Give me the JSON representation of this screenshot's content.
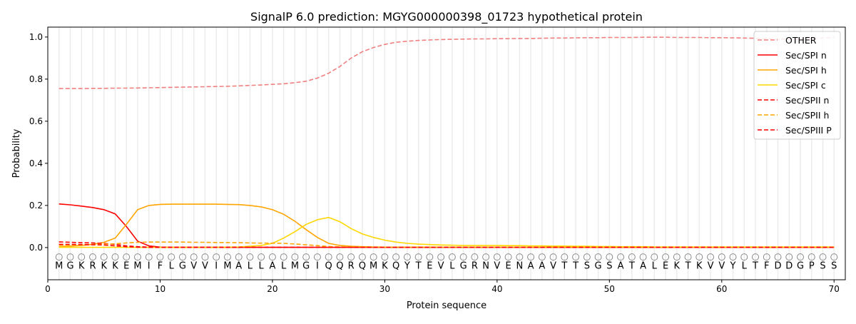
{
  "chart_data": {
    "type": "line",
    "title": "SignalP 6.0 prediction: MGYG000000398_01723 hypothetical protein",
    "xlabel": "Protein sequence",
    "ylabel": "Probability",
    "xlim": [
      0,
      71
    ],
    "ylim": [
      -0.153,
      1.047
    ],
    "xticks": [
      0,
      10,
      20,
      30,
      40,
      50,
      60,
      70
    ],
    "yticks": [
      "0.0",
      "0.2",
      "0.4",
      "0.6",
      "0.8",
      "1.0"
    ],
    "ytick_values": [
      0,
      0.2,
      0.4,
      0.6,
      0.8,
      1.0
    ],
    "legend_position": "top-right",
    "sequence": [
      "M",
      "G",
      "K",
      "R",
      "K",
      "K",
      "E",
      "M",
      "I",
      "F",
      "L",
      "G",
      "V",
      "V",
      "I",
      "M",
      "A",
      "L",
      "L",
      "A",
      "L",
      "M",
      "G",
      "I",
      "Q",
      "Q",
      "R",
      "Q",
      "M",
      "K",
      "Q",
      "Y",
      "T",
      "E",
      "V",
      "L",
      "G",
      "R",
      "N",
      "V",
      "E",
      "N",
      "A",
      "A",
      "V",
      "T",
      "T",
      "S",
      "G",
      "S",
      "A",
      "T",
      "A",
      "L",
      "E",
      "K",
      "T",
      "K",
      "V",
      "V",
      "Y",
      "L",
      "T",
      "F",
      "D",
      "D",
      "G",
      "P",
      "S",
      "S"
    ],
    "region_labels": "O",
    "series": [
      {
        "name": "OTHER",
        "color": "#f08080",
        "dash": true,
        "values": [
          0.755,
          0.755,
          0.755,
          0.756,
          0.756,
          0.757,
          0.757,
          0.758,
          0.759,
          0.76,
          0.761,
          0.762,
          0.763,
          0.764,
          0.765,
          0.766,
          0.768,
          0.77,
          0.772,
          0.775,
          0.778,
          0.783,
          0.79,
          0.805,
          0.828,
          0.86,
          0.9,
          0.93,
          0.95,
          0.965,
          0.975,
          0.98,
          0.984,
          0.986,
          0.988,
          0.989,
          0.99,
          0.991,
          0.991,
          0.992,
          0.992,
          0.993,
          0.993,
          0.994,
          0.995,
          0.995,
          0.996,
          0.997,
          0.997,
          0.998,
          0.998,
          0.998,
          0.999,
          0.999,
          0.999,
          0.998,
          0.998,
          0.998,
          0.997,
          0.997,
          0.996,
          0.995,
          0.994,
          0.992,
          0.99,
          0.99,
          0.99,
          0.992,
          0.995,
          0.998
        ]
      },
      {
        "name": "Sec/SPI n",
        "color": "#ff0000",
        "dash": false,
        "values": [
          0.207,
          0.203,
          0.197,
          0.19,
          0.18,
          0.16,
          0.1,
          0.03,
          0.008,
          0.002,
          0.001,
          0.001,
          0.001,
          0.001,
          0.001,
          0.001,
          0.001,
          0.001,
          0.001,
          0.001,
          0.001,
          0.001,
          0.001,
          0.001,
          0.001,
          0.001,
          0.001,
          0.001,
          0.001,
          0.001,
          0.001,
          0.001,
          0.001,
          0.001,
          0.001,
          0.001,
          0.001,
          0.001,
          0.001,
          0.001,
          0.001,
          0.001,
          0.001,
          0.001,
          0.001,
          0.001,
          0.001,
          0.001,
          0.001,
          0.001,
          0.001,
          0.001,
          0.001,
          0.001,
          0.001,
          0.001,
          0.001,
          0.001,
          0.001,
          0.001,
          0.001,
          0.001,
          0.001,
          0.001,
          0.001,
          0.001,
          0.001,
          0.001,
          0.001,
          0.001
        ]
      },
      {
        "name": "Sec/SPI h",
        "color": "#ffa500",
        "dash": false,
        "values": [
          0.005,
          0.007,
          0.01,
          0.015,
          0.025,
          0.045,
          0.11,
          0.18,
          0.2,
          0.205,
          0.206,
          0.206,
          0.206,
          0.206,
          0.206,
          0.205,
          0.204,
          0.2,
          0.193,
          0.18,
          0.158,
          0.125,
          0.085,
          0.048,
          0.02,
          0.01,
          0.006,
          0.004,
          0.003,
          0.002,
          0.002,
          0.002,
          0.002,
          0.002,
          0.002,
          0.002,
          0.002,
          0.002,
          0.002,
          0.002,
          0.002,
          0.002,
          0.002,
          0.002,
          0.002,
          0.002,
          0.002,
          0.002,
          0.002,
          0.002,
          0.002,
          0.002,
          0.002,
          0.002,
          0.002,
          0.002,
          0.002,
          0.002,
          0.002,
          0.002,
          0.002,
          0.002,
          0.002,
          0.002,
          0.002,
          0.002,
          0.002,
          0.002,
          0.002,
          0.002
        ]
      },
      {
        "name": "Sec/SPI c",
        "color": "#ffd700",
        "dash": false,
        "values": [
          0.001,
          0.001,
          0.001,
          0.001,
          0.001,
          0.001,
          0.001,
          0.001,
          0.001,
          0.001,
          0.001,
          0.001,
          0.001,
          0.001,
          0.001,
          0.002,
          0.003,
          0.006,
          0.01,
          0.02,
          0.045,
          0.075,
          0.11,
          0.132,
          0.143,
          0.123,
          0.09,
          0.065,
          0.048,
          0.035,
          0.026,
          0.02,
          0.016,
          0.014,
          0.012,
          0.011,
          0.01,
          0.01,
          0.01,
          0.01,
          0.009,
          0.009,
          0.008,
          0.008,
          0.007,
          0.007,
          0.006,
          0.006,
          0.005,
          0.005,
          0.004,
          0.004,
          0.004,
          0.003,
          0.003,
          0.003,
          0.003,
          0.003,
          0.003,
          0.003,
          0.003,
          0.003,
          0.003,
          0.003,
          0.003,
          0.003,
          0.003,
          0.003,
          0.003,
          0.003
        ]
      },
      {
        "name": "Sec/SPII n",
        "color": "#ff0000",
        "dash": true,
        "values": [
          0.027,
          0.025,
          0.023,
          0.022,
          0.02,
          0.015,
          0.008,
          0.004,
          0.002,
          0.001,
          0.001,
          0.001,
          0.001,
          0.001,
          0.001,
          0.001,
          0.001,
          0.001,
          0.001,
          0.001,
          0.001,
          0.001,
          0.001,
          0.001,
          0.001,
          0.001,
          0.001,
          0.001,
          0.001,
          0.001,
          0.001,
          0.001,
          0.001,
          0.001,
          0.001,
          0.001,
          0.001,
          0.001,
          0.001,
          0.001,
          0.001,
          0.001,
          0.001,
          0.001,
          0.001,
          0.001,
          0.001,
          0.001,
          0.001,
          0.001,
          0.001,
          0.001,
          0.001,
          0.001,
          0.001,
          0.001,
          0.001,
          0.001,
          0.001,
          0.001,
          0.001,
          0.001,
          0.001,
          0.001,
          0.001,
          0.001,
          0.001,
          0.001,
          0.001,
          0.001
        ]
      },
      {
        "name": "Sec/SPII h",
        "color": "#ffa500",
        "dash": true,
        "values": [
          0.012,
          0.013,
          0.014,
          0.015,
          0.016,
          0.018,
          0.022,
          0.025,
          0.026,
          0.026,
          0.026,
          0.026,
          0.025,
          0.025,
          0.024,
          0.024,
          0.023,
          0.022,
          0.021,
          0.021,
          0.02,
          0.017,
          0.013,
          0.009,
          0.005,
          0.003,
          0.002,
          0.002,
          0.002,
          0.002,
          0.002,
          0.002,
          0.002,
          0.002,
          0.002,
          0.002,
          0.002,
          0.002,
          0.002,
          0.002,
          0.002,
          0.002,
          0.002,
          0.002,
          0.002,
          0.002,
          0.002,
          0.002,
          0.002,
          0.002,
          0.002,
          0.002,
          0.002,
          0.002,
          0.002,
          0.002,
          0.002,
          0.002,
          0.002,
          0.002,
          0.002,
          0.002,
          0.002,
          0.002,
          0.002,
          0.002,
          0.002,
          0.002,
          0.002,
          0.002
        ]
      },
      {
        "name": "Sec/SPIII P",
        "color": "#ff0000",
        "dash": true,
        "values": [
          0.015,
          0.015,
          0.014,
          0.013,
          0.012,
          0.008,
          0.004,
          0.002,
          0.001,
          0.001,
          0.001,
          0.001,
          0.001,
          0.001,
          0.001,
          0.001,
          0.001,
          0.001,
          0.001,
          0.001,
          0.001,
          0.001,
          0.001,
          0.001,
          0.001,
          0.001,
          0.001,
          0.001,
          0.001,
          0.001,
          0.001,
          0.001,
          0.001,
          0.001,
          0.001,
          0.001,
          0.001,
          0.001,
          0.001,
          0.001,
          0.001,
          0.001,
          0.001,
          0.001,
          0.001,
          0.001,
          0.001,
          0.001,
          0.001,
          0.001,
          0.001,
          0.001,
          0.001,
          0.001,
          0.001,
          0.001,
          0.001,
          0.001,
          0.001,
          0.001,
          0.001,
          0.001,
          0.001,
          0.001,
          0.001,
          0.001,
          0.001,
          0.001,
          0.001,
          0.001
        ]
      }
    ]
  }
}
